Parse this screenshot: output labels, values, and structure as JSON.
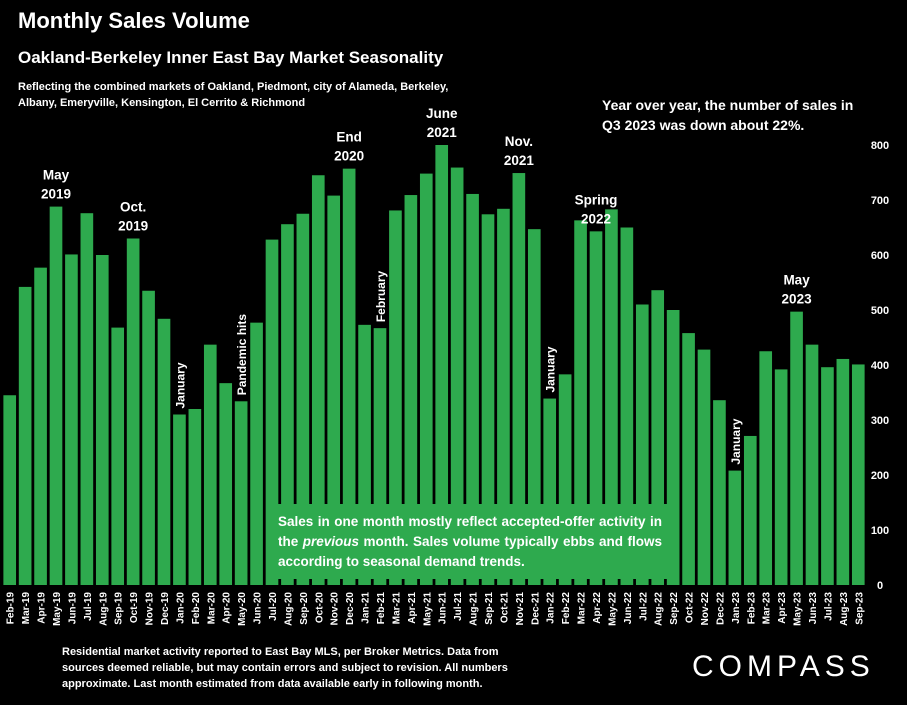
{
  "header": {
    "title": "Monthly Sales Volume",
    "subtitle": "Oakland-Berkeley Inner East Bay Market Seasonality",
    "description": "Reflecting the combined markets of Oakland, Piedmont, city of Alameda, Berkeley, Albany, Emeryville, Kensington, El Cerrito & Richmond",
    "yoy_note": "Year over year, the number of sales in Q3 2023 was down about 22%."
  },
  "callout": {
    "text_before": "Sales in one month mostly reflect accepted-offer activity in the ",
    "text_emph": "previous",
    "text_after": " month. Sales volume typically ebbs and flows according to seasonal demand trends."
  },
  "footer": {
    "text": "Residential market activity reported to East Bay MLS, per Broker Metrics. Data from sources deemed reliable, but may contain errors and subject to revision. All numbers approximate. Last month estimated from data available early in following month.",
    "logo": "COMPASS"
  },
  "colors": {
    "bar": "#2eaa4e",
    "background": "#000000",
    "text": "#ffffff"
  },
  "chart_data": {
    "type": "bar",
    "categories": [
      "Feb-19",
      "Mar-19",
      "Apr-19",
      "May-19",
      "Jun-19",
      "Jul-19",
      "Aug-19",
      "Sep-19",
      "Oct-19",
      "Nov-19",
      "Dec-19",
      "Jan-20",
      "Feb-20",
      "Mar-20",
      "Apr-20",
      "May-20",
      "Jun-20",
      "Jul-20",
      "Aug-20",
      "Sep-20",
      "Oct-20",
      "Nov-20",
      "Dec-20",
      "Jan-21",
      "Feb-21",
      "Mar-21",
      "Apr-21",
      "May-21",
      "Jun-21",
      "Jul-21",
      "Aug-21",
      "Sep-21",
      "Oct-21",
      "Nov-21",
      "Dec-21",
      "Jan-22",
      "Feb-22",
      "Mar-22",
      "Apr-22",
      "May-22",
      "Jun-22",
      "Jul-22",
      "Aug-22",
      "Sep-22",
      "Oct-22",
      "Nov-22",
      "Dec-22",
      "Jan-23",
      "Feb-23",
      "Mar-23",
      "Apr-23",
      "May-23",
      "Jun-23",
      "Jul-23",
      "Aug-23",
      "Sep-23"
    ],
    "values": [
      345,
      542,
      577,
      688,
      601,
      676,
      600,
      468,
      630,
      535,
      484,
      310,
      320,
      437,
      367,
      334,
      477,
      628,
      656,
      675,
      745,
      708,
      757,
      473,
      467,
      681,
      709,
      748,
      800,
      759,
      711,
      674,
      684,
      749,
      647,
      339,
      383,
      663,
      643,
      683,
      650,
      510,
      536,
      500,
      458,
      428,
      336,
      208,
      271,
      425,
      392,
      497,
      437,
      396,
      411,
      401
    ],
    "ylim": [
      0,
      800
    ],
    "yticks": [
      0,
      100,
      200,
      300,
      400,
      500,
      600,
      700,
      800
    ],
    "y_axis_side": "right",
    "annotations": [
      {
        "text": "May\n2019",
        "index": 3,
        "orientation": "horizontal"
      },
      {
        "text": "Oct.\n2019",
        "index": 8,
        "orientation": "horizontal"
      },
      {
        "text": "January",
        "index": 11,
        "orientation": "vertical"
      },
      {
        "text": "Pandemic hits",
        "index": 15,
        "orientation": "vertical"
      },
      {
        "text": "End\n2020",
        "index": 22,
        "orientation": "horizontal"
      },
      {
        "text": "February",
        "index": 24,
        "orientation": "vertical"
      },
      {
        "text": "June\n2021",
        "index": 28,
        "orientation": "horizontal"
      },
      {
        "text": "Nov.\n2021",
        "index": 33,
        "orientation": "horizontal"
      },
      {
        "text": "January",
        "index": 35,
        "orientation": "vertical"
      },
      {
        "text": "Spring\n2022",
        "index": 38,
        "orientation": "horizontal"
      },
      {
        "text": "January",
        "index": 47,
        "orientation": "vertical"
      },
      {
        "text": "May\n2023",
        "index": 51,
        "orientation": "horizontal"
      }
    ]
  }
}
